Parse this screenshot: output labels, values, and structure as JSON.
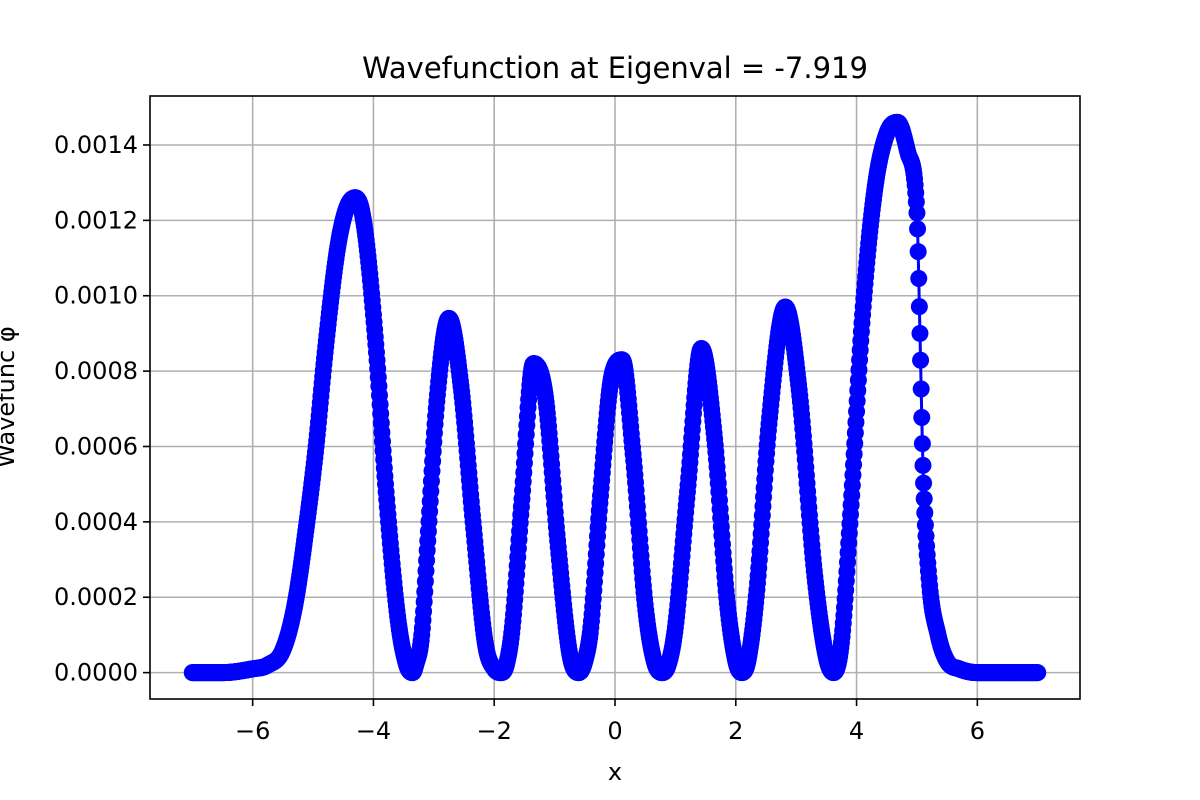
{
  "chart_data": {
    "type": "line",
    "title": "Wavefunction at Eigenval = -7.919",
    "xlabel": "x",
    "ylabel": "Wavefunc φ",
    "xlim": [
      -7.7,
      7.7
    ],
    "ylim": [
      -7e-05,
      0.00153
    ],
    "xticks": [
      -6,
      -4,
      -2,
      0,
      2,
      4,
      6
    ],
    "xtick_labels": [
      "−6",
      "−4",
      "−2",
      "0",
      "2",
      "4",
      "6"
    ],
    "yticks": [
      0,
      0.0002,
      0.0004,
      0.0006,
      0.0008,
      0.001,
      0.0012,
      0.0014
    ],
    "ytick_labels": [
      "0.0000",
      "0.0002",
      "0.0004",
      "0.0006",
      "0.0008",
      "0.0010",
      "0.0012",
      "0.0014"
    ],
    "grid": true,
    "marker": "circle",
    "series": [
      {
        "color": "#0000ff",
        "x": [
          -7.0,
          -6.5,
          -6.0,
          -5.75,
          -5.5,
          -5.3,
          -5.1,
          -4.95,
          -4.8,
          -4.6,
          -4.45,
          -4.3,
          -4.2,
          -4.1,
          -3.95,
          -3.8,
          -3.6,
          -3.45,
          -3.35,
          -3.3,
          -3.2,
          -3.1,
          -2.95,
          -2.75,
          -2.55,
          -2.35,
          -2.15,
          -2.0,
          -1.88,
          -1.8,
          -1.7,
          -1.55,
          -1.35,
          -1.15,
          -0.95,
          -0.75,
          -0.6,
          -0.5,
          -0.4,
          -0.25,
          -0.05,
          0.12,
          0.3,
          0.5,
          0.65,
          0.78,
          0.88,
          1.0,
          1.2,
          1.43,
          1.65,
          1.85,
          2.0,
          2.1,
          2.2,
          2.35,
          2.55,
          2.82,
          3.05,
          3.3,
          3.5,
          3.62,
          3.75,
          3.9,
          4.1,
          4.3,
          4.5,
          4.68,
          4.85,
          5.0,
          5.05,
          5.1,
          5.2,
          5.35,
          5.5,
          5.7,
          6.0,
          6.5,
          7.0
        ],
        "values": [
          0.0,
          0.0,
          1e-05,
          2e-05,
          6e-05,
          0.00018,
          0.0004,
          0.0006,
          0.00085,
          0.00112,
          0.00123,
          0.00126,
          0.00123,
          0.00112,
          0.00085,
          0.0005,
          0.00015,
          2e-05,
          0.0,
          2e-05,
          0.0001,
          0.00035,
          0.00072,
          0.00094,
          0.00076,
          0.0004,
          8e-05,
          1e-05,
          0.0,
          2e-05,
          0.00012,
          0.00044,
          0.00082,
          0.00073,
          0.00035,
          5e-05,
          0.0,
          3e-05,
          0.00012,
          0.00045,
          0.00079,
          0.00083,
          0.00058,
          0.00018,
          3e-05,
          0.0,
          2e-05,
          0.00012,
          0.00048,
          0.00086,
          0.00062,
          0.0002,
          3e-05,
          0.0,
          3e-05,
          0.00022,
          0.00066,
          0.00097,
          0.00075,
          0.00027,
          4e-05,
          0.0,
          8e-05,
          0.00042,
          0.00095,
          0.00128,
          0.00143,
          0.00146,
          0.00138,
          0.00122,
          0.0009,
          0.00055,
          0.00025,
          0.0001,
          3e-05,
          1e-05,
          0.0,
          0.0,
          0.0
        ]
      }
    ]
  }
}
